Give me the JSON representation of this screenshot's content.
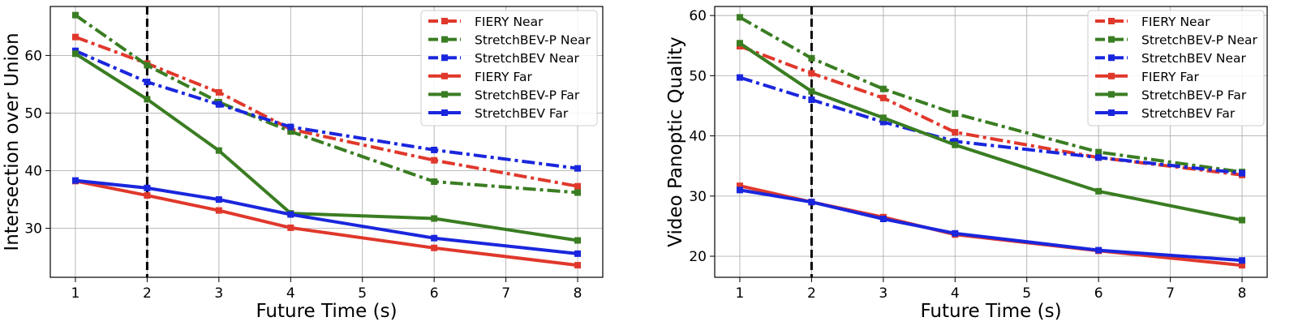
{
  "figure": {
    "colors": {
      "fiery": "#e0382c",
      "stretchbev_p": "#3a7d22",
      "stretchbev": "#1a26dd"
    }
  },
  "chart_data": [
    {
      "type": "line",
      "xlabel": "Future Time (s)",
      "ylabel": "Intersection over Union",
      "xlim": [
        0.65,
        8.35
      ],
      "ylim": [
        21.5,
        68.5
      ],
      "xticks": [
        1,
        2,
        3,
        4,
        5,
        6,
        7,
        8
      ],
      "yticks": [
        30,
        40,
        50,
        60
      ],
      "grid": true,
      "legend_position": "top-right",
      "vline": {
        "x": 2,
        "style": "dashed",
        "color": "#000000"
      },
      "series": [
        {
          "name": "FIERY Near",
          "color": "#e0382c",
          "style": "dashdot",
          "x": [
            1,
            2,
            3,
            4,
            6,
            8
          ],
          "y": [
            63.2,
            58.6,
            53.6,
            47.2,
            41.8,
            37.3
          ]
        },
        {
          "name": "StretchBEV-P Near",
          "color": "#3a7d22",
          "style": "dashdot",
          "x": [
            1,
            2,
            3,
            4,
            6,
            8
          ],
          "y": [
            67.0,
            58.3,
            51.9,
            46.8,
            38.1,
            36.2
          ]
        },
        {
          "name": "StretchBEV Near",
          "color": "#1a26dd",
          "style": "dashdot",
          "x": [
            1,
            2,
            3,
            4,
            6,
            8
          ],
          "y": [
            60.8,
            55.4,
            51.5,
            47.6,
            43.6,
            40.4
          ]
        },
        {
          "name": "FIERY Far",
          "color": "#e0382c",
          "style": "solid",
          "x": [
            1,
            2,
            3,
            4,
            6,
            8
          ],
          "y": [
            38.2,
            35.7,
            33.1,
            30.1,
            26.6,
            23.6
          ]
        },
        {
          "name": "StretchBEV-P Far",
          "color": "#3a7d22",
          "style": "solid",
          "x": [
            1,
            2,
            3,
            4,
            6,
            8
          ],
          "y": [
            60.3,
            52.4,
            43.5,
            32.6,
            31.7,
            27.9
          ]
        },
        {
          "name": "StretchBEV Far",
          "color": "#1a26dd",
          "style": "solid",
          "x": [
            1,
            2,
            3,
            4,
            6,
            8
          ],
          "y": [
            38.3,
            37.0,
            35.0,
            32.4,
            28.3,
            25.6
          ]
        }
      ]
    },
    {
      "type": "line",
      "xlabel": "Future Time (s)",
      "ylabel": "Video Panoptic Quality",
      "xlim": [
        0.65,
        8.35
      ],
      "ylim": [
        16.5,
        61.5
      ],
      "xticks": [
        1,
        2,
        3,
        4,
        5,
        6,
        7,
        8
      ],
      "yticks": [
        20,
        30,
        40,
        50,
        60
      ],
      "grid": true,
      "legend_position": "top-right",
      "vline": {
        "x": 2,
        "style": "dashed",
        "color": "#000000"
      },
      "series": [
        {
          "name": "FIERY Near",
          "color": "#e0382c",
          "style": "dashdot",
          "x": [
            1,
            2,
            3,
            4,
            6,
            8
          ],
          "y": [
            54.9,
            50.4,
            46.3,
            40.6,
            36.4,
            33.5
          ]
        },
        {
          "name": "StretchBEV-P Near",
          "color": "#3a7d22",
          "style": "dashdot",
          "x": [
            1,
            2,
            3,
            4,
            6,
            8
          ],
          "y": [
            59.7,
            52.9,
            47.8,
            43.7,
            37.3,
            34.0
          ]
        },
        {
          "name": "StretchBEV Near",
          "color": "#1a26dd",
          "style": "dashdot",
          "x": [
            1,
            2,
            3,
            4,
            6,
            8
          ],
          "y": [
            49.7,
            46.0,
            42.3,
            39.1,
            36.4,
            33.8
          ]
        },
        {
          "name": "FIERY Far",
          "color": "#e0382c",
          "style": "solid",
          "x": [
            1,
            2,
            3,
            4,
            6,
            8
          ],
          "y": [
            31.7,
            29.0,
            26.5,
            23.6,
            20.9,
            18.5
          ]
        },
        {
          "name": "StretchBEV-P Far",
          "color": "#3a7d22",
          "style": "solid",
          "x": [
            1,
            2,
            3,
            4,
            6,
            8
          ],
          "y": [
            55.4,
            47.4,
            43.0,
            38.5,
            30.8,
            26.0
          ]
        },
        {
          "name": "StretchBEV Far",
          "color": "#1a26dd",
          "style": "solid",
          "x": [
            1,
            2,
            3,
            4,
            6,
            8
          ],
          "y": [
            31.0,
            29.0,
            26.2,
            23.8,
            21.0,
            19.3
          ]
        }
      ]
    }
  ]
}
